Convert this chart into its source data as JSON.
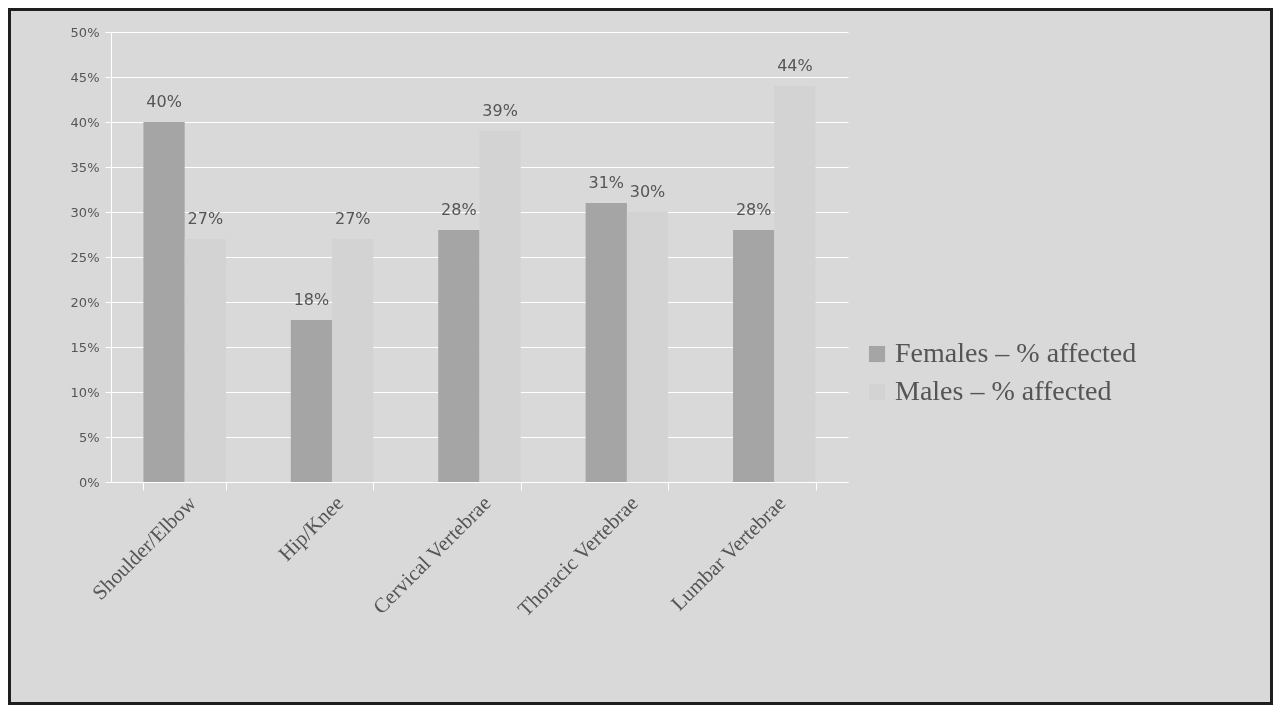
{
  "chart_data": {
    "type": "bar",
    "categories": [
      "Shoulder/Elbow",
      "Hip/Knee",
      "Cervical Vertebrae",
      "Thoracic Vertebrae",
      "Lumbar Vertebrae"
    ],
    "series": [
      {
        "name": "Females – % affected",
        "color": "#a5a5a5",
        "values": [
          40,
          18,
          28,
          31,
          28
        ],
        "value_labels": [
          "40%",
          "18%",
          "28%",
          "31%",
          "28%"
        ]
      },
      {
        "name": "Males – % affected",
        "color": "#d3d3d3",
        "values": [
          27,
          27,
          39,
          30,
          44
        ],
        "value_labels": [
          "27%",
          "27%",
          "39%",
          "30%",
          "44%"
        ]
      }
    ],
    "ylim": [
      0,
      50
    ],
    "yticks": [
      {
        "value": 0,
        "label": "0%"
      },
      {
        "value": 5,
        "label": "5%"
      },
      {
        "value": 10,
        "label": "10%"
      },
      {
        "value": 15,
        "label": "15%"
      },
      {
        "value": 20,
        "label": "20%"
      },
      {
        "value": 25,
        "label": "25%"
      },
      {
        "value": 30,
        "label": "30%"
      },
      {
        "value": 35,
        "label": "35%"
      },
      {
        "value": 40,
        "label": "40%"
      },
      {
        "value": 45,
        "label": "45%"
      },
      {
        "value": 50,
        "label": "50%"
      }
    ],
    "grid": "y",
    "legend": "right"
  }
}
